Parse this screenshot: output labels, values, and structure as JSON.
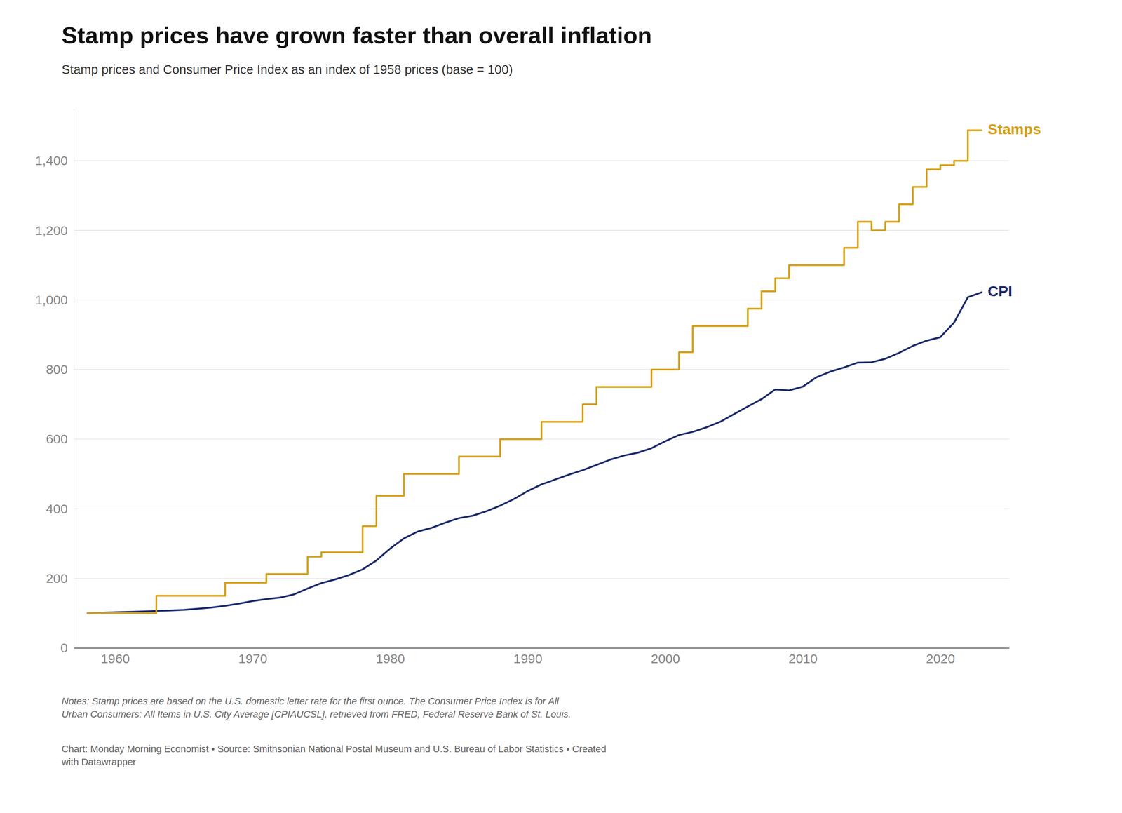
{
  "chart_data": {
    "type": "line",
    "title": "Stamp prices have grown faster than overall inflation",
    "subtitle": "Stamp prices and Consumer Price Index as an index of 1958 prices (base = 100)",
    "notes": "Notes: Stamp prices are based on the U.S. domestic letter rate for the first ounce. The Consumer Price Index is for All\nUrban Consumers: All Items in U.S. City Average [CPIAUCSL], retrieved from FRED, Federal Reserve Bank of St. Louis.",
    "source": "Chart: Monday Morning Economist • Source: Smithsonian National Postal Museum and U.S. Bureau of Labor Statistics • Created\nwith Datawrapper",
    "xlim": [
      1957,
      2025
    ],
    "xticks": [
      1960,
      1970,
      1980,
      1990,
      2000,
      2010,
      2020
    ],
    "ylim": [
      0,
      1550
    ],
    "yticks": [
      0,
      200,
      400,
      600,
      800,
      {
        "value": 1000,
        "label": "1,000"
      },
      {
        "value": 1200,
        "label": "1,200"
      },
      {
        "value": 1400,
        "label": "1,400"
      }
    ],
    "grid": true,
    "series": [
      {
        "name": "CPI",
        "color": "#1B2A6B",
        "x": [
          1958,
          1959,
          1960,
          1961,
          1962,
          1963,
          1964,
          1965,
          1966,
          1967,
          1968,
          1969,
          1970,
          1971,
          1972,
          1973,
          1974,
          1975,
          1976,
          1977,
          1978,
          1979,
          1980,
          1981,
          1982,
          1983,
          1984,
          1985,
          1986,
          1987,
          1988,
          1989,
          1990,
          1991,
          1992,
          1993,
          1994,
          1995,
          1996,
          1997,
          1998,
          1999,
          2000,
          2001,
          2002,
          2003,
          2004,
          2005,
          2006,
          2007,
          2008,
          2009,
          2010,
          2011,
          2012,
          2013,
          2014,
          2015,
          2016,
          2017,
          2018,
          2019,
          2020,
          2021,
          2022,
          2023
        ],
        "values": [
          100.0,
          101.0,
          102.7,
          103.7,
          104.9,
          106.3,
          107.7,
          109.4,
          112.6,
          116.0,
          121.0,
          127.3,
          134.7,
          140.3,
          144.8,
          153.8,
          170.9,
          186.4,
          196.9,
          209.6,
          225.9,
          251.5,
          285.6,
          315.0,
          334.4,
          345.0,
          360.0,
          373.0,
          380.0,
          393.0,
          409.0,
          428.0,
          451.0,
          470.0,
          484.0,
          498.0,
          511.0,
          526.0,
          541.0,
          553.0,
          561.0,
          574.0,
          594.0,
          612.0,
          621.0,
          634.0,
          650.0,
          672.0,
          694.0,
          715.0,
          743.0,
          740.0,
          751.0,
          778.0,
          794.0,
          806.0,
          820.0,
          821.0,
          831.0,
          848.0,
          868.0,
          883.0,
          893.0,
          935.0,
          1008.0,
          1022.0
        ]
      },
      {
        "name": "Stamps",
        "color": "#D4A017",
        "x": [
          1958,
          1963,
          1963,
          1968,
          1968,
          1971,
          1971,
          1974,
          1974,
          1975,
          1975,
          1978,
          1978,
          1979,
          1979,
          1981,
          1981,
          1985,
          1985,
          1988,
          1988,
          1991,
          1991,
          1994,
          1994,
          1995,
          1995,
          1999,
          1999,
          2001,
          2001,
          2002,
          2002,
          2006,
          2006,
          2007,
          2007,
          2008,
          2008,
          2009,
          2009,
          2012,
          2013,
          2013,
          2014,
          2014,
          2015,
          2015,
          2016,
          2016,
          2017,
          2017,
          2018,
          2018,
          2019,
          2019,
          2020,
          2020,
          2021,
          2021,
          2022,
          2022,
          2023
        ],
        "values": [
          100,
          100,
          150,
          150,
          187.5,
          187.5,
          212.5,
          212.5,
          262.5,
          262.5,
          275,
          275,
          350,
          350,
          437.5,
          437.5,
          500,
          500,
          550,
          550,
          600,
          600,
          650,
          650,
          700,
          700,
          750,
          750,
          800,
          800,
          850,
          850,
          925,
          925,
          975,
          975,
          1025,
          1025,
          1062.5,
          1062.5,
          1100,
          1100,
          1100,
          1150,
          1150,
          1225,
          1225,
          1200,
          1200,
          1225,
          1225,
          1275,
          1275,
          1325,
          1325,
          1375,
          1375,
          1387.5,
          1387.5,
          1400,
          1400,
          1487.5,
          1487.5
        ]
      }
    ]
  }
}
